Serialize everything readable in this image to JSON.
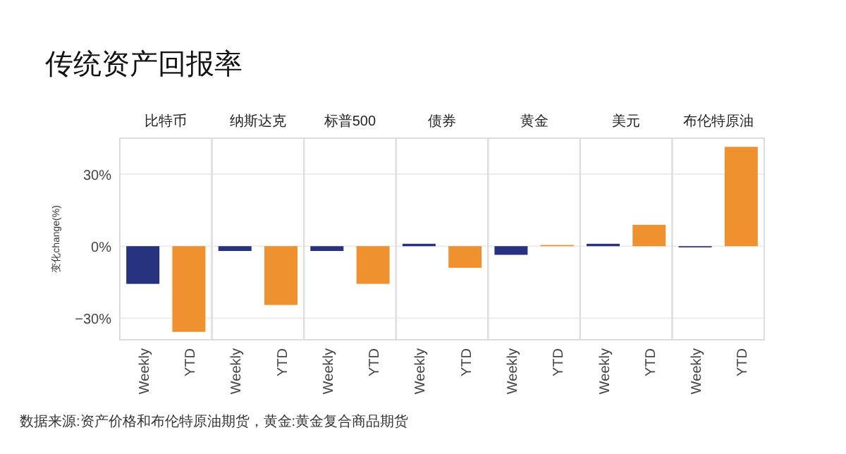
{
  "chart_data": [
    {
      "type": "bar",
      "title": "比特币",
      "ylabel": "变化change(%)",
      "annotations": [
        "传统资产回报率",
        "数据来源:资产价格和布伦特原油期货，黄金:黄金复合商品期货"
      ],
      "categories": [
        "Weekly",
        "YTD"
      ],
      "values": [
        -15.7,
        -35.7
      ],
      "colors": [
        "#27327e",
        "#f0912f"
      ],
      "ylim": [
        -39,
        45
      ],
      "yticks": [
        {
          "value": -30,
          "label": "−30%"
        },
        {
          "value": 0,
          "label": "0%"
        },
        {
          "value": 30,
          "label": "30%"
        }
      ],
      "grid": "y"
    },
    {
      "type": "bar",
      "title": "纳斯达克",
      "categories": [
        "Weekly",
        "YTD"
      ],
      "values": [
        -2,
        -24.5
      ],
      "colors": [
        "#27327e",
        "#f0912f"
      ],
      "ylim": [
        -39,
        45
      ],
      "yticks": [
        {
          "value": -30,
          "label": null
        },
        {
          "value": 0,
          "label": null
        },
        {
          "value": 30,
          "label": null
        }
      ],
      "grid": "y",
      "tick_labels": "x"
    },
    {
      "type": "bar",
      "title": "标普500",
      "categories": [
        "Weekly",
        "YTD"
      ],
      "values": [
        -2,
        -15.7
      ],
      "colors": [
        "#27327e",
        "#f0912f"
      ],
      "ylim": [
        -39,
        45
      ],
      "yticks": [
        {
          "value": -30,
          "label": null
        },
        {
          "value": 0,
          "label": null
        },
        {
          "value": 30,
          "label": null
        }
      ],
      "grid": "y",
      "tick_labels": "x"
    },
    {
      "type": "bar",
      "title": "债券",
      "categories": [
        "Weekly",
        "YTD"
      ],
      "values": [
        1,
        -9
      ],
      "colors": [
        "#27327e",
        "#f0912f"
      ],
      "ylim": [
        -39,
        45
      ],
      "yticks": [
        {
          "value": -30,
          "label": null
        },
        {
          "value": 0,
          "label": null
        },
        {
          "value": 30,
          "label": null
        }
      ],
      "grid": "y",
      "tick_labels": "x"
    },
    {
      "type": "bar",
      "title": "黄金",
      "categories": [
        "Weekly",
        "YTD"
      ],
      "values": [
        -3.6,
        0.5
      ],
      "colors": [
        "#27327e",
        "#f0912f"
      ],
      "ylim": [
        -39,
        45
      ],
      "yticks": [
        {
          "value": -30,
          "label": null
        },
        {
          "value": 0,
          "label": null
        },
        {
          "value": 30,
          "label": null
        }
      ],
      "grid": "y",
      "tick_labels": "x"
    },
    {
      "type": "bar",
      "title": "美元",
      "categories": [
        "Weekly",
        "YTD"
      ],
      "values": [
        1,
        8.9
      ],
      "colors": [
        "#27327e",
        "#f0912f"
      ],
      "ylim": [
        -39,
        45
      ],
      "yticks": [
        {
          "value": -30,
          "label": null
        },
        {
          "value": 0,
          "label": null
        },
        {
          "value": 30,
          "label": null
        }
      ],
      "grid": "y",
      "tick_labels": "x"
    },
    {
      "type": "bar",
      "title": "布伦特原油",
      "categories": [
        "Weekly",
        "YTD"
      ],
      "values": [
        -0.5,
        41.4
      ],
      "colors": [
        "#27327e",
        "#f0912f"
      ],
      "ylim": [
        -39,
        45
      ],
      "yticks": [
        {
          "value": -30,
          "label": null
        },
        {
          "value": 0,
          "label": null
        },
        {
          "value": 30,
          "label": null
        }
      ],
      "grid": "y",
      "tick_labels": "x"
    }
  ]
}
